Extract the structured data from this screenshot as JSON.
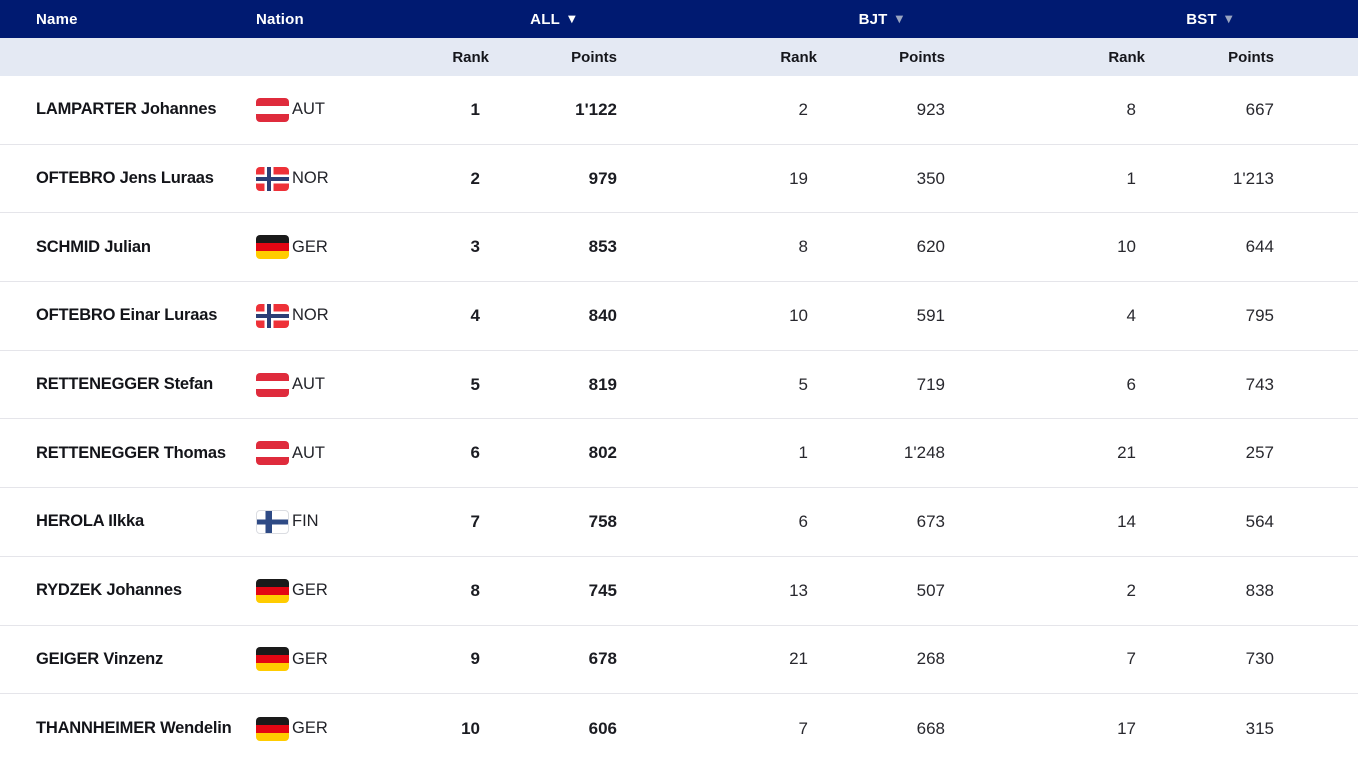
{
  "table": {
    "columns": {
      "name_label": "Name",
      "nation_label": "Nation",
      "rank_label": "Rank",
      "points_label": "Points"
    },
    "groups": [
      {
        "label": "ALL",
        "sort_icon": "▼",
        "active": true
      },
      {
        "label": "BJT",
        "sort_icon": "▼",
        "active": false
      },
      {
        "label": "BST",
        "sort_icon": "▼",
        "active": false
      }
    ],
    "colors": {
      "header_bg": "#001A71",
      "subheader_bg": "#E4E9F3",
      "active_sort": "#FFFFFF",
      "inactive_sort": "#9AA5C0"
    },
    "rows": [
      {
        "name": "LAMPARTER Johannes",
        "nation": "AUT",
        "all_rank": "1",
        "all_points": "1'122",
        "bjt_rank": "2",
        "bjt_points": "923",
        "bst_rank": "8",
        "bst_points": "667"
      },
      {
        "name": "OFTEBRO Jens Luraas",
        "nation": "NOR",
        "all_rank": "2",
        "all_points": "979",
        "bjt_rank": "19",
        "bjt_points": "350",
        "bst_rank": "1",
        "bst_points": "1'213"
      },
      {
        "name": "SCHMID Julian",
        "nation": "GER",
        "all_rank": "3",
        "all_points": "853",
        "bjt_rank": "8",
        "bjt_points": "620",
        "bst_rank": "10",
        "bst_points": "644"
      },
      {
        "name": "OFTEBRO Einar Luraas",
        "nation": "NOR",
        "all_rank": "4",
        "all_points": "840",
        "bjt_rank": "10",
        "bjt_points": "591",
        "bst_rank": "4",
        "bst_points": "795"
      },
      {
        "name": "RETTENEGGER Stefan",
        "nation": "AUT",
        "all_rank": "5",
        "all_points": "819",
        "bjt_rank": "5",
        "bjt_points": "719",
        "bst_rank": "6",
        "bst_points": "743"
      },
      {
        "name": "RETTENEGGER Thomas",
        "nation": "AUT",
        "all_rank": "6",
        "all_points": "802",
        "bjt_rank": "1",
        "bjt_points": "1'248",
        "bst_rank": "21",
        "bst_points": "257"
      },
      {
        "name": "HEROLA Ilkka",
        "nation": "FIN",
        "all_rank": "7",
        "all_points": "758",
        "bjt_rank": "6",
        "bjt_points": "673",
        "bst_rank": "14",
        "bst_points": "564"
      },
      {
        "name": "RYDZEK Johannes",
        "nation": "GER",
        "all_rank": "8",
        "all_points": "745",
        "bjt_rank": "13",
        "bjt_points": "507",
        "bst_rank": "2",
        "bst_points": "838"
      },
      {
        "name": "GEIGER Vinzenz",
        "nation": "GER",
        "all_rank": "9",
        "all_points": "678",
        "bjt_rank": "21",
        "bjt_points": "268",
        "bst_rank": "7",
        "bst_points": "730"
      },
      {
        "name": "THANNHEIMER Wendelin",
        "nation": "GER",
        "all_rank": "10",
        "all_points": "606",
        "bjt_rank": "7",
        "bjt_points": "668",
        "bst_rank": "17",
        "bst_points": "315"
      }
    ]
  }
}
